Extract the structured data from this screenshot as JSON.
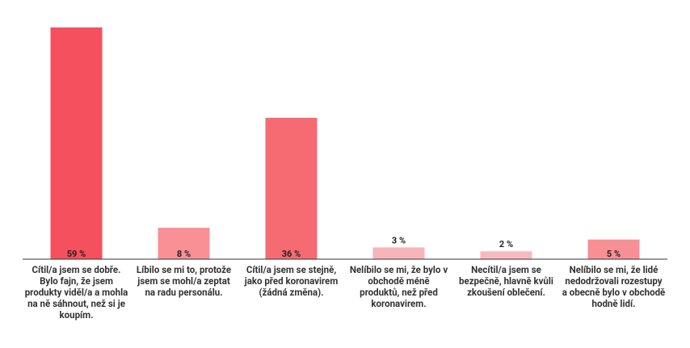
{
  "chart_data": {
    "type": "bar",
    "categories": [
      "Cítil/a jsem se dobře. Bylo fajn, že jsem produkty viděl/a a mohla na ně sáhnout, než si je koupím.",
      "Líbilo se mi to, protože jsem se mohl/a zeptat na radu personálu.",
      "Cítil/a jsem se stejně, jako před koronavirem (žádná změna).",
      "Nelíbilo se mi, že bylo v obchodě méně produktů, než před koronavirem.",
      "Necítil/a jsem se bezpečně, hlavně kvůli zkoušení oblečení.",
      "Nelíbilo se mi, že lidé nedodržovali rozestupy a obecně bylo v obchodě hodně lidí."
    ],
    "values": [
      59,
      8,
      36,
      3,
      2,
      5
    ],
    "value_labels": [
      "59 %",
      "8 %",
      "36 %",
      "3 %",
      "2 %",
      "5 %"
    ],
    "colors": [
      "#f5505d",
      "#f99096",
      "#f66a72",
      "#f8b5b9",
      "#f9babe",
      "#f88f95"
    ]
  }
}
